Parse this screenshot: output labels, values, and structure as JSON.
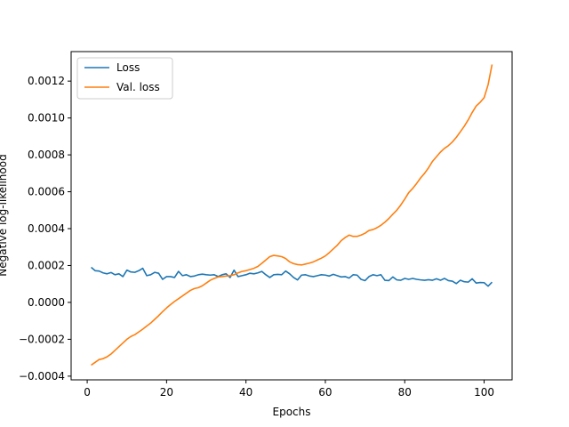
{
  "chart_data": {
    "type": "line",
    "title": "",
    "xlabel": "Epochs",
    "ylabel": "Negative log-likelihood",
    "xlim": [
      -4.05,
      107.05
    ],
    "ylim": [
      -0.00042,
      0.00136
    ],
    "xticks": [
      0,
      20,
      40,
      60,
      80,
      100
    ],
    "xtick_labels": [
      "0",
      "20",
      "40",
      "60",
      "80",
      "100"
    ],
    "yticks": [
      -0.0004,
      -0.0002,
      0.0,
      0.0002,
      0.0004,
      0.0006,
      0.0008,
      0.001,
      0.0012
    ],
    "ytick_labels": [
      "−0.0004",
      "−0.0002",
      "0.0000",
      "0.0002",
      "0.0004",
      "0.0006",
      "0.0008",
      "0.0010",
      "0.0012"
    ],
    "grid": false,
    "legend": {
      "position": "top-left",
      "entries": [
        "Loss",
        "Val. loss"
      ]
    },
    "series": [
      {
        "name": "Loss",
        "color": "#1f77b4",
        "x": [
          1,
          2,
          3,
          4,
          5,
          6,
          7,
          8,
          9,
          10,
          11,
          12,
          13,
          14,
          15,
          16,
          17,
          18,
          19,
          20,
          21,
          22,
          23,
          24,
          25,
          26,
          27,
          28,
          29,
          30,
          31,
          32,
          33,
          34,
          35,
          36,
          37,
          38,
          39,
          40,
          41,
          42,
          43,
          44,
          45,
          46,
          47,
          48,
          49,
          50,
          51,
          52,
          53,
          54,
          55,
          56,
          57,
          58,
          59,
          60,
          61,
          62,
          63,
          64,
          65,
          66,
          67,
          68,
          69,
          70,
          71,
          72,
          73,
          74,
          75,
          76,
          77,
          78,
          79,
          80,
          81,
          82,
          83,
          84,
          85,
          86,
          87,
          88,
          89,
          90,
          91,
          92,
          93,
          94,
          95,
          96,
          97,
          98,
          99,
          100,
          101,
          102
        ],
        "y": [
          0.00019,
          0.000172,
          0.00017,
          0.00016,
          0.000155,
          0.000162,
          0.00015,
          0.000155,
          0.00014,
          0.000175,
          0.000165,
          0.000163,
          0.000172,
          0.000185,
          0.000145,
          0.00015,
          0.000163,
          0.000158,
          0.000125,
          0.00014,
          0.00014,
          0.000135,
          0.000168,
          0.000145,
          0.00015,
          0.00014,
          0.000143,
          0.00015,
          0.000153,
          0.00015,
          0.000148,
          0.00015,
          0.00014,
          0.00015,
          0.000155,
          0.000135,
          0.000175,
          0.00014,
          0.000145,
          0.00015,
          0.000158,
          0.000155,
          0.00016,
          0.000168,
          0.00015,
          0.000135,
          0.00015,
          0.000152,
          0.00015,
          0.00017,
          0.000155,
          0.000135,
          0.000122,
          0.000148,
          0.00015,
          0.000143,
          0.00014,
          0.000145,
          0.00015,
          0.000148,
          0.000143,
          0.000152,
          0.000145,
          0.000138,
          0.00014,
          0.000132,
          0.00015,
          0.000148,
          0.000125,
          0.000118,
          0.00014,
          0.00015,
          0.000145,
          0.00015,
          0.00012,
          0.000118,
          0.000138,
          0.000122,
          0.00012,
          0.00013,
          0.000125,
          0.00013,
          0.000125,
          0.000122,
          0.00012,
          0.000123,
          0.00012,
          0.000128,
          0.00012,
          0.00013,
          0.000118,
          0.000115,
          0.000102,
          0.00012,
          0.000112,
          0.00011,
          0.000128,
          0.000105,
          0.000108,
          0.000107,
          8.8e-05,
          0.00011
        ]
      },
      {
        "name": "Val. loss",
        "color": "#ff7f0e",
        "x": [
          1,
          2,
          3,
          4,
          5,
          6,
          7,
          8,
          9,
          10,
          11,
          12,
          13,
          14,
          15,
          16,
          17,
          18,
          19,
          20,
          21,
          22,
          23,
          24,
          25,
          26,
          27,
          28,
          29,
          30,
          31,
          32,
          33,
          34,
          35,
          36,
          37,
          38,
          39,
          40,
          41,
          42,
          43,
          44,
          45,
          46,
          47,
          48,
          49,
          50,
          51,
          52,
          53,
          54,
          55,
          56,
          57,
          58,
          59,
          60,
          61,
          62,
          63,
          64,
          65,
          66,
          67,
          68,
          69,
          70,
          71,
          72,
          73,
          74,
          75,
          76,
          77,
          78,
          79,
          80,
          81,
          82,
          83,
          84,
          85,
          86,
          87,
          88,
          89,
          90,
          91,
          92,
          93,
          94,
          95,
          96,
          97,
          98,
          99,
          100,
          101,
          102
        ],
        "y": [
          -0.00034,
          -0.000325,
          -0.00031,
          -0.000305,
          -0.000295,
          -0.00028,
          -0.00026,
          -0.00024,
          -0.00022,
          -0.0002,
          -0.000185,
          -0.000175,
          -0.00016,
          -0.000145,
          -0.000128,
          -0.000112,
          -9.2e-05,
          -7.2e-05,
          -5e-05,
          -3e-05,
          -1.2e-05,
          5e-06,
          2e-05,
          3.5e-05,
          5e-05,
          6.5e-05,
          7.5e-05,
          8e-05,
          9e-05,
          0.000105,
          0.00012,
          0.00013,
          0.000138,
          0.00014,
          0.000143,
          0.000145,
          0.00015,
          0.00016,
          0.000168,
          0.000172,
          0.000178,
          0.000185,
          0.000195,
          0.000212,
          0.00023,
          0.000248,
          0.000255,
          0.000252,
          0.000248,
          0.000238,
          0.00022,
          0.00021,
          0.000205,
          0.000203,
          0.000208,
          0.000213,
          0.00022,
          0.00023,
          0.00024,
          0.000252,
          0.00027,
          0.00029,
          0.00031,
          0.000335,
          0.000352,
          0.000365,
          0.000358,
          0.000358,
          0.000365,
          0.000375,
          0.00039,
          0.000395,
          0.000405,
          0.000418,
          0.000435,
          0.000455,
          0.000478,
          0.0005,
          0.000528,
          0.00056,
          0.000595,
          0.000618,
          0.000645,
          0.000675,
          0.0007,
          0.00073,
          0.000765,
          0.00079,
          0.000815,
          0.000835,
          0.00085,
          0.00087,
          0.000895,
          0.000925,
          0.000955,
          0.00099,
          0.00103,
          0.001065,
          0.001085,
          0.00111,
          0.00118,
          0.00129
        ]
      }
    ]
  }
}
